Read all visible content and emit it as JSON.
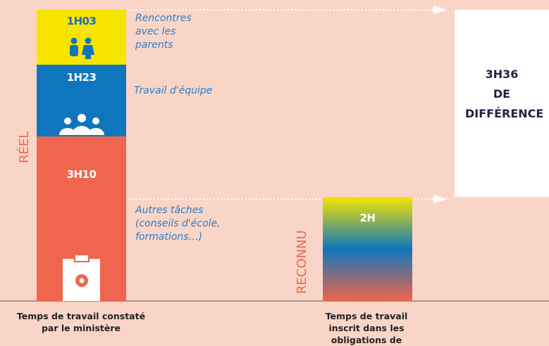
{
  "chart_data": {
    "type": "bar",
    "stacked": true,
    "ylim": [
      0,
      340
    ],
    "bars": [
      {
        "category": "Temps de travail constaté par le ministère",
        "label": "RÉEL",
        "segments": [
          {
            "name": "Autres tâches (conseils d'école, formations…)",
            "value": 190,
            "value_label": "3H10",
            "color": "#f0654e"
          },
          {
            "name": "Travail d'équipe",
            "value": 83,
            "value_label": "1H23",
            "color": "#0f76bd"
          },
          {
            "name": "Rencontres avec les parents",
            "value": 63,
            "value_label": "1H03",
            "color": "#f7e500"
          }
        ]
      },
      {
        "category": "Temps de travail inscrit dans les obligations de services",
        "label": "RECONNU",
        "segments": [
          {
            "value": 120,
            "value_label": "2H",
            "colors": [
              "#f7e500",
              "#0f76bd",
              "#f0654e"
            ]
          }
        ]
      }
    ],
    "difference": {
      "value": 216,
      "value_label": "3H36",
      "text": "DE DIFFÉRENCE"
    }
  }
}
